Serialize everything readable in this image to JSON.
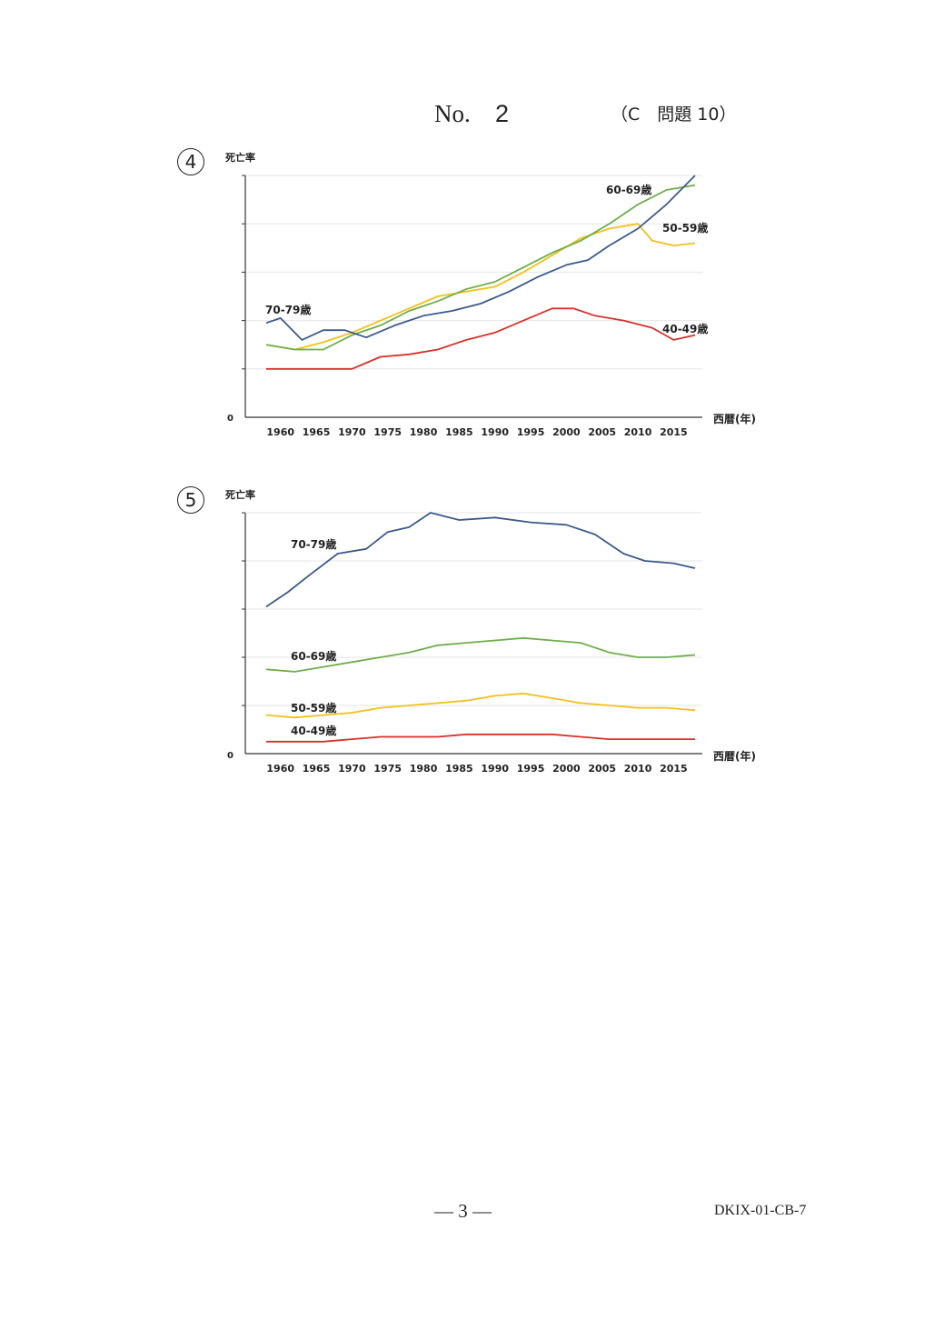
{
  "header": {
    "no": "No.",
    "number": "2",
    "question": "（C　問題 10）"
  },
  "charts_meta": [
    {
      "marker": "4"
    },
    {
      "marker": "5"
    }
  ],
  "chart_data": [
    {
      "type": "line",
      "ylabel": "死亡率",
      "xlabel": "西暦(年)",
      "y_zero_label": "0",
      "xticks": [
        1960,
        1965,
        1970,
        1975,
        1980,
        1985,
        1990,
        1995,
        2000,
        2005,
        2010,
        2015
      ],
      "xlim": [
        1958,
        2018
      ],
      "ylim": [
        0,
        100
      ],
      "grid": true,
      "colors": {
        "40-49歳": "#d9302a",
        "50-59歳": "#f2c01a",
        "60-69歳": "#6fae4a",
        "70-79歳": "#3c5a8c"
      },
      "series": [
        {
          "name": "40-49歳",
          "x": [
            1958,
            1962,
            1966,
            1970,
            1974,
            1978,
            1982,
            1986,
            1990,
            1994,
            1998,
            2001,
            2004,
            2008,
            2012,
            2015,
            2018
          ],
          "values": [
            20,
            20,
            20,
            20,
            25,
            26,
            28,
            32,
            35,
            40,
            45,
            45,
            42,
            40,
            37,
            32,
            34
          ]
        },
        {
          "name": "50-59歳",
          "x": [
            1958,
            1962,
            1966,
            1970,
            1974,
            1978,
            1982,
            1986,
            1990,
            1994,
            1998,
            2002,
            2006,
            2010,
            2012,
            2015,
            2018
          ],
          "values": [
            30,
            28,
            31,
            35,
            40,
            45,
            50,
            52,
            54,
            60,
            67,
            74,
            78,
            80,
            73,
            71,
            72
          ]
        },
        {
          "name": "60-69歳",
          "x": [
            1958,
            1962,
            1966,
            1970,
            1974,
            1978,
            1982,
            1986,
            1990,
            1994,
            1998,
            2002,
            2006,
            2010,
            2014,
            2018
          ],
          "values": [
            30,
            28,
            28,
            34,
            38,
            44,
            48,
            53,
            56,
            62,
            68,
            73,
            80,
            88,
            94,
            96
          ]
        },
        {
          "name": "70-79歳",
          "x": [
            1958,
            1960,
            1963,
            1966,
            1969,
            1972,
            1976,
            1980,
            1984,
            1988,
            1992,
            1996,
            2000,
            2003,
            2006,
            2010,
            2014,
            2018
          ],
          "values": [
            39,
            41,
            32,
            36,
            36,
            33,
            38,
            42,
            44,
            47,
            52,
            58,
            63,
            65,
            71,
            78,
            88,
            100
          ]
        }
      ],
      "labels_text": [
        "70-79歳",
        "60-69歳",
        "50-59歳",
        "40-49歳"
      ]
    },
    {
      "type": "line",
      "ylabel": "死亡率",
      "xlabel": "西暦(年)",
      "y_zero_label": "0",
      "xticks": [
        1960,
        1965,
        1970,
        1975,
        1980,
        1985,
        1990,
        1995,
        2000,
        2005,
        2010,
        2015
      ],
      "xlim": [
        1958,
        2018
      ],
      "ylim": [
        0,
        100
      ],
      "grid": true,
      "colors": {
        "40-49歳": "#d9302a",
        "50-59歳": "#f2c01a",
        "60-69歳": "#6fae4a",
        "70-79歳": "#3c5a8c"
      },
      "series": [
        {
          "name": "70-79歳",
          "x": [
            1958,
            1961,
            1964,
            1968,
            1972,
            1975,
            1978,
            1981,
            1985,
            1990,
            1995,
            2000,
            2004,
            2008,
            2011,
            2015,
            2018
          ],
          "values": [
            61,
            67,
            74,
            83,
            85,
            92,
            94,
            100,
            97,
            98,
            96,
            95,
            91,
            83,
            80,
            79,
            77
          ]
        },
        {
          "name": "60-69歳",
          "x": [
            1958,
            1962,
            1966,
            1970,
            1974,
            1978,
            1982,
            1986,
            1990,
            1994,
            1998,
            2002,
            2006,
            2010,
            2014,
            2018
          ],
          "values": [
            35,
            34,
            36,
            38,
            40,
            42,
            45,
            46,
            47,
            48,
            47,
            46,
            42,
            40,
            40,
            41
          ]
        },
        {
          "name": "50-59歳",
          "x": [
            1958,
            1962,
            1966,
            1970,
            1974,
            1978,
            1982,
            1986,
            1990,
            1994,
            1998,
            2002,
            2006,
            2010,
            2014,
            2018
          ],
          "values": [
            16,
            15,
            16,
            17,
            19,
            20,
            21,
            22,
            24,
            25,
            23,
            21,
            20,
            19,
            19,
            18
          ]
        },
        {
          "name": "40-49歳",
          "x": [
            1958,
            1962,
            1966,
            1970,
            1974,
            1978,
            1982,
            1986,
            1990,
            1994,
            1998,
            2002,
            2006,
            2010,
            2014,
            2018
          ],
          "values": [
            5,
            5,
            5,
            6,
            7,
            7,
            7,
            8,
            8,
            8,
            8,
            7,
            6,
            6,
            6,
            6
          ]
        }
      ],
      "labels_text": [
        "70-79歳",
        "60-69歳",
        "50-59歳",
        "40-49歳"
      ]
    }
  ],
  "footer": {
    "page": "— 3 —",
    "code": "DKIX-01-CB-7"
  }
}
